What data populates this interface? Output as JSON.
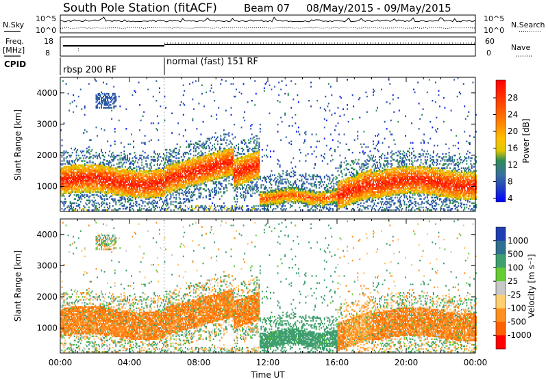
{
  "header": {
    "title": "South Pole Station (fitACF)",
    "beam": "Beam 07",
    "date_range": "08/May/2015 - 09/May/2015"
  },
  "sky_panel": {
    "left_label": "N.Sky",
    "right_label": "N.Search",
    "left_ticks": [
      "10^5",
      "10^0"
    ],
    "right_ticks": [
      "10^5",
      "10^0"
    ]
  },
  "freq_panel": {
    "left_label_1": "Freq.",
    "left_label_2": "[MHz]",
    "left_ticks": [
      "18",
      "8"
    ],
    "right_label": "Nave",
    "right_ticks": [
      "60",
      "0"
    ]
  },
  "cpid_panel": {
    "label": "CPID",
    "modes": [
      "rbsp 200 RF",
      "normal (fast) 151 RF"
    ],
    "mode_boundary_hour": 6
  },
  "chart_data": [
    {
      "type": "heatmap",
      "ylabel": "Slant Range [km]",
      "xlabel": "",
      "y_ticks": [
        "1000",
        "2000",
        "3000",
        "4000"
      ],
      "ylim": [
        200,
        4500
      ],
      "x_ticks": [
        "00:00",
        "04:00",
        "08:00",
        "12:00",
        "16:00",
        "20:00",
        "00:00"
      ],
      "xlim_hours": [
        0,
        24
      ],
      "colorbar": {
        "label": "Power [dB]",
        "tick_labels": [
          "28",
          "24",
          "20",
          "16",
          "12",
          "8",
          "4"
        ],
        "colors_high_to_low": [
          "#ff1a00",
          "#ff4c00",
          "#ff8000",
          "#ffb000",
          "#e8c800",
          "#2e8b57",
          "#40a070",
          "#2244aa",
          "#1f3fd0",
          "#0a1aff"
        ]
      }
    },
    {
      "type": "heatmap",
      "ylabel": "Slant Range [km]",
      "xlabel": "Time UT",
      "y_ticks": [
        "1000",
        "2000",
        "3000",
        "4000"
      ],
      "ylim": [
        200,
        4500
      ],
      "x_ticks": [
        "00:00",
        "04:00",
        "08:00",
        "12:00",
        "16:00",
        "20:00",
        "00:00"
      ],
      "xlim_hours": [
        0,
        24
      ],
      "colorbar": {
        "label": "Velocity [m s⁻¹]",
        "tick_labels": [
          "1000",
          "500",
          "100",
          "25",
          "-25",
          "-100",
          "-500",
          "-1000"
        ],
        "colors_high_to_low": [
          "#1f3fb0",
          "#2f6f8f",
          "#3f9f6f",
          "#66cc33",
          "#c8c8c8",
          "#ffd070",
          "#ff9020",
          "#ff6000",
          "#ff0000"
        ]
      }
    }
  ]
}
